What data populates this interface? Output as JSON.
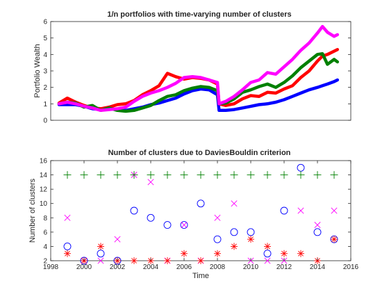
{
  "chart_data": [
    {
      "type": "line",
      "title": "1/n portfolios with time-varying number of clusters",
      "xlabel": "",
      "ylabel": "Portfolio Wealth",
      "xlim": [
        1998,
        2016
      ],
      "ylim": [
        0,
        6
      ],
      "x_ticks": [],
      "y_ticks": [
        0,
        1,
        2,
        3,
        4,
        5,
        6
      ],
      "grid": false,
      "x": [
        1998.5,
        1999,
        1999.5,
        2000,
        2000.5,
        2001,
        2001.5,
        2002,
        2002.5,
        2003,
        2003.5,
        2004,
        2004.5,
        2005,
        2005.5,
        2006,
        2006.5,
        2007,
        2007.5,
        2008,
        2008.1,
        2008.5,
        2009,
        2009.5,
        2010,
        2010.5,
        2011,
        2011.5,
        2012,
        2012.5,
        2013,
        2013.5,
        2014,
        2014.3,
        2014.6,
        2015,
        2015.2
      ],
      "series": [
        {
          "color": "#0000ff",
          "values": [
            0.95,
            0.95,
            0.95,
            0.85,
            0.7,
            0.65,
            0.7,
            0.65,
            0.6,
            0.7,
            0.8,
            0.95,
            1.05,
            1.2,
            1.35,
            1.6,
            1.8,
            1.9,
            1.85,
            1.55,
            0.6,
            0.6,
            0.65,
            0.75,
            0.85,
            0.95,
            1.0,
            1.1,
            1.25,
            1.45,
            1.65,
            1.85,
            2.0,
            2.1,
            2.2,
            2.35,
            2.45
          ]
        },
        {
          "color": "#ff0000",
          "values": [
            1.05,
            1.35,
            1.1,
            0.9,
            0.75,
            0.7,
            0.8,
            0.95,
            1.0,
            1.2,
            1.55,
            1.8,
            2.1,
            2.85,
            2.65,
            2.5,
            2.6,
            2.55,
            2.45,
            2.2,
            1.0,
            0.9,
            1.0,
            1.3,
            1.5,
            1.45,
            1.7,
            1.65,
            1.9,
            2.1,
            2.6,
            3.0,
            3.6,
            3.9,
            4.0,
            4.2,
            4.3
          ]
        },
        {
          "color": "#008000",
          "values": [
            1.0,
            1.1,
            1.05,
            0.8,
            0.9,
            0.6,
            0.75,
            0.6,
            0.55,
            0.6,
            0.75,
            0.9,
            1.2,
            1.45,
            1.55,
            1.8,
            1.95,
            2.05,
            2.0,
            1.8,
            1.0,
            1.05,
            1.3,
            1.7,
            1.85,
            2.05,
            2.2,
            2.0,
            2.3,
            2.7,
            3.2,
            3.6,
            4.0,
            4.05,
            3.4,
            3.7,
            3.55
          ]
        },
        {
          "color": "#ff00ff",
          "values": [
            1.0,
            1.1,
            1.0,
            0.85,
            0.75,
            0.6,
            0.65,
            0.7,
            0.8,
            1.15,
            1.45,
            1.65,
            1.8,
            2.0,
            2.25,
            2.6,
            2.65,
            2.6,
            2.45,
            2.3,
            1.0,
            1.15,
            1.45,
            1.85,
            2.3,
            2.45,
            2.9,
            2.8,
            3.25,
            3.7,
            4.25,
            4.7,
            5.3,
            5.7,
            5.35,
            5.1,
            5.2
          ]
        }
      ]
    },
    {
      "type": "scatter",
      "title": "Number of clusters due to DaviesBouldin criterion",
      "xlabel": "Time",
      "ylabel": "Number of clusters",
      "xlim": [
        1998,
        2016
      ],
      "ylim": [
        2,
        16
      ],
      "x_ticks": [
        1998,
        2000,
        2002,
        2004,
        2006,
        2008,
        2010,
        2012,
        2014,
        2016
      ],
      "y_ticks": [
        2,
        4,
        6,
        8,
        10,
        12,
        14,
        16
      ],
      "grid": false,
      "x": [
        1999,
        2000,
        2001,
        2002,
        2003,
        2004,
        2005,
        2006,
        2007,
        2008,
        2009,
        2010,
        2011,
        2012,
        2013,
        2014,
        2015
      ],
      "series": [
        {
          "marker": "circle",
          "color": "#0000ff",
          "values": [
            4,
            2,
            3,
            2,
            9,
            8,
            7,
            7,
            10,
            5,
            6,
            6,
            3,
            9,
            15,
            6,
            5
          ]
        },
        {
          "marker": "x",
          "color": "#ff00ff",
          "values": [
            8,
            2,
            2,
            5,
            14,
            13,
            2,
            7,
            2,
            8,
            10,
            2,
            2,
            2,
            9,
            7,
            9
          ]
        },
        {
          "marker": "star",
          "color": "#ff0000",
          "values": [
            3,
            2,
            4,
            2,
            2,
            2,
            2,
            3,
            2,
            3,
            4,
            5,
            4,
            3,
            3,
            2,
            5
          ]
        },
        {
          "marker": "plus",
          "color": "#008000",
          "values": [
            14,
            14,
            14,
            14,
            14,
            14,
            14,
            14,
            14,
            14,
            14,
            14,
            14,
            14,
            14,
            14,
            14
          ]
        }
      ]
    }
  ]
}
